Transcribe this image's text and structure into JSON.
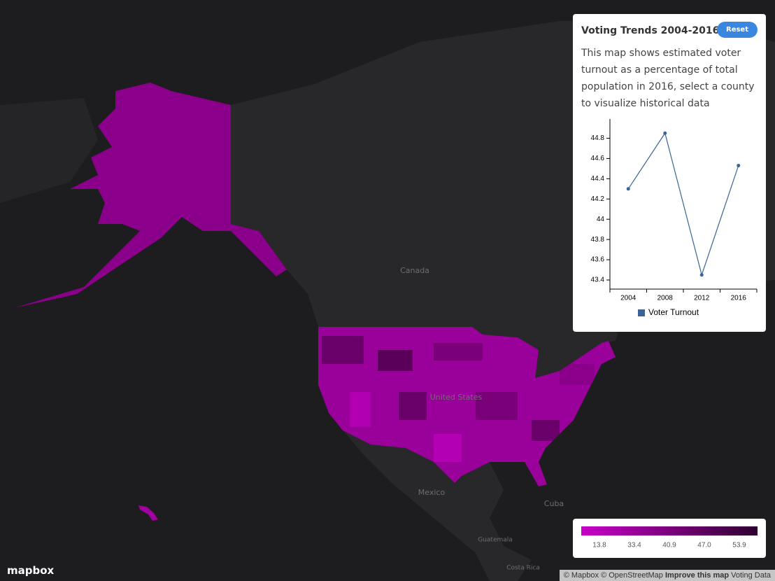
{
  "panel": {
    "title": "Voting Trends 2004-2016",
    "button": "Reset",
    "description": "This map shows estimated voter turnout as a percentage of total population in 2016, select a county to visualize historical data"
  },
  "chart_data": {
    "type": "line",
    "categories": [
      "2004",
      "2008",
      "2012",
      "2016"
    ],
    "series": [
      {
        "name": "Voter Turnout",
        "color": "#3a6496",
        "values": [
          44.3,
          44.85,
          43.45,
          44.53
        ]
      }
    ],
    "ylim": [
      43.31,
      44.99
    ],
    "yticks": [
      43.4,
      43.6,
      43.8,
      44,
      44.2,
      44.4,
      44.6,
      44.8
    ]
  },
  "map": {
    "labels": [
      "Canada",
      "United States",
      "Mexico",
      "Cuba",
      "Guatemala",
      "Costa Rica"
    ],
    "legend": {
      "ticks": [
        13.8,
        33.4,
        40.9,
        {
          "value": 47,
          "label": "47.0"
        },
        53.9
      ],
      "colors": [
        "#c800c8",
        "#2e0030"
      ]
    },
    "logo": "mapbox",
    "attribution": [
      "© Mapbox",
      "© OpenStreetMap",
      "Improve this map",
      "Voting Data"
    ]
  }
}
